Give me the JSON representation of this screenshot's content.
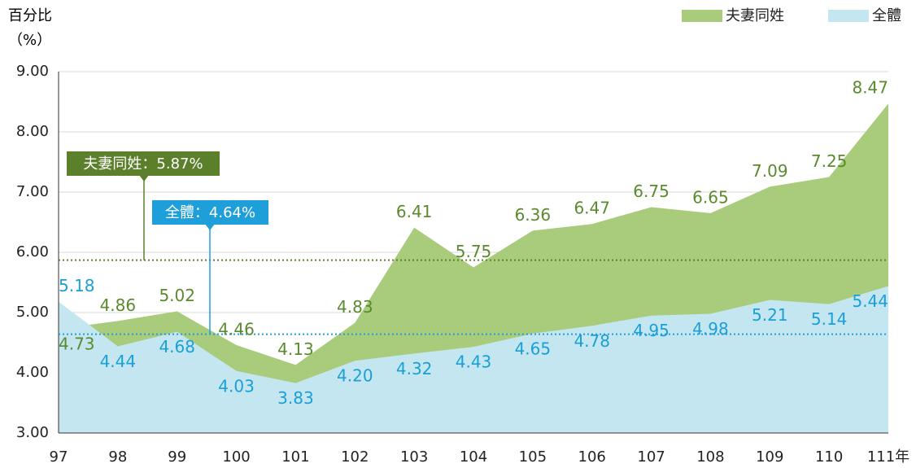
{
  "chart_data": {
    "type": "area",
    "ylabel": [
      "百分比",
      "（%）"
    ],
    "categories": [
      "97",
      "98",
      "99",
      "100",
      "101",
      "102",
      "103",
      "104",
      "105",
      "106",
      "107",
      "108",
      "109",
      "110",
      "111年"
    ],
    "series": [
      {
        "name": "夫妻同姓",
        "color": "#a8cc7b",
        "label_color": "#5b8a2e",
        "values": [
          4.73,
          4.86,
          5.02,
          4.46,
          4.13,
          4.83,
          6.41,
          5.75,
          6.36,
          6.47,
          6.75,
          6.65,
          7.09,
          7.25,
          8.47
        ],
        "value_labels": [
          "4.73",
          "4.86",
          "5.02",
          "4.46",
          "4.13",
          "4.83",
          "6.41",
          "5.75",
          "6.36",
          "6.47",
          "6.75",
          "6.65",
          "7.09",
          "7.25",
          "8.47"
        ]
      },
      {
        "name": "全體",
        "color": "#c4e6f1",
        "label_color": "#1a9fd6",
        "values": [
          5.18,
          4.44,
          4.68,
          4.03,
          3.83,
          4.2,
          4.32,
          4.43,
          4.65,
          4.78,
          4.95,
          4.98,
          5.21,
          5.14,
          5.44
        ],
        "value_labels": [
          "5.18",
          "4.44",
          "4.68",
          "4.03",
          "3.83",
          "4.20",
          "4.32",
          "4.43",
          "4.65",
          "4.78",
          "4.95",
          "4.98",
          "5.21",
          "5.14",
          "5.44"
        ]
      }
    ],
    "reference_lines": [
      {
        "value": 5.87,
        "label": "夫妻同姓：5.87%",
        "color": "#5b7f2a"
      },
      {
        "value": 4.64,
        "label": "全體：4.64%",
        "color": "#1e9fda"
      }
    ],
    "ylim": [
      3,
      9
    ],
    "yticks": [
      {
        "value": 3,
        "label": "3.00"
      },
      {
        "value": 4,
        "label": "4.00"
      },
      {
        "value": 5,
        "label": "5.00"
      },
      {
        "value": 6,
        "label": "6.00"
      },
      {
        "value": 7,
        "label": "7.00"
      },
      {
        "value": 8,
        "label": "8.00"
      },
      {
        "value": 9,
        "label": "9.00"
      }
    ],
    "grid": true,
    "legend": "top-right"
  }
}
